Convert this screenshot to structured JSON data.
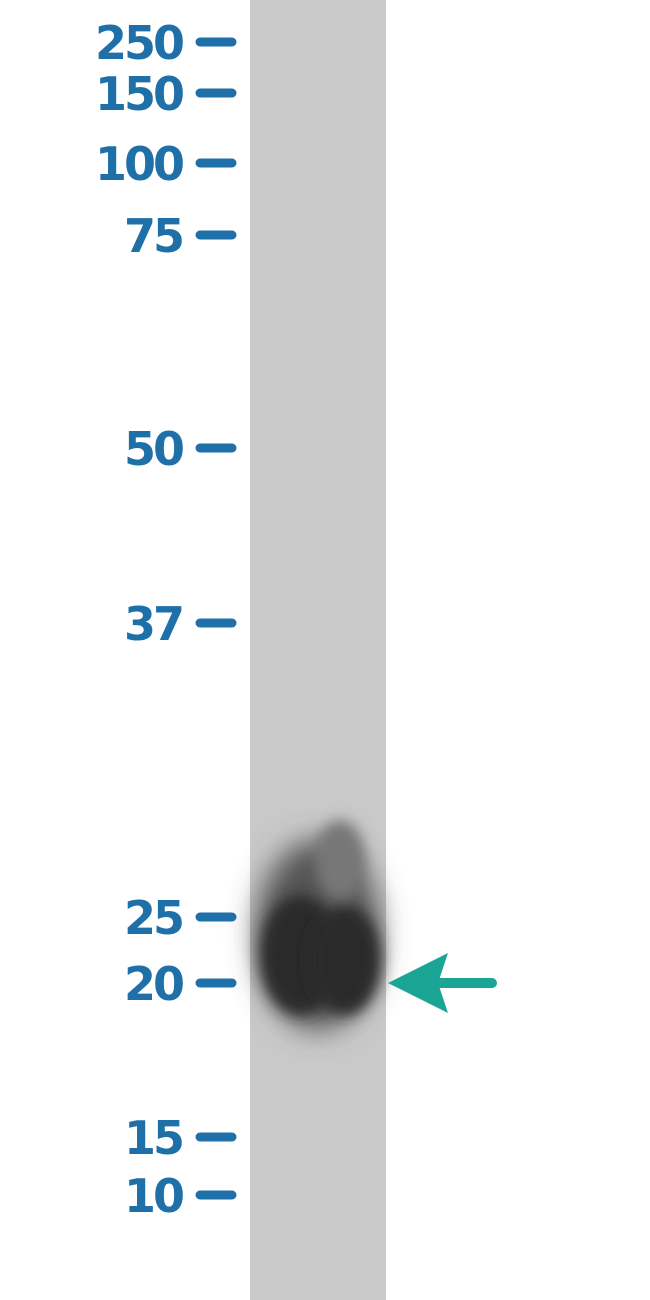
{
  "markers": [
    "250",
    "150",
    "100",
    "75",
    "50",
    "37",
    "25",
    "20",
    "15",
    "10"
  ]
}
